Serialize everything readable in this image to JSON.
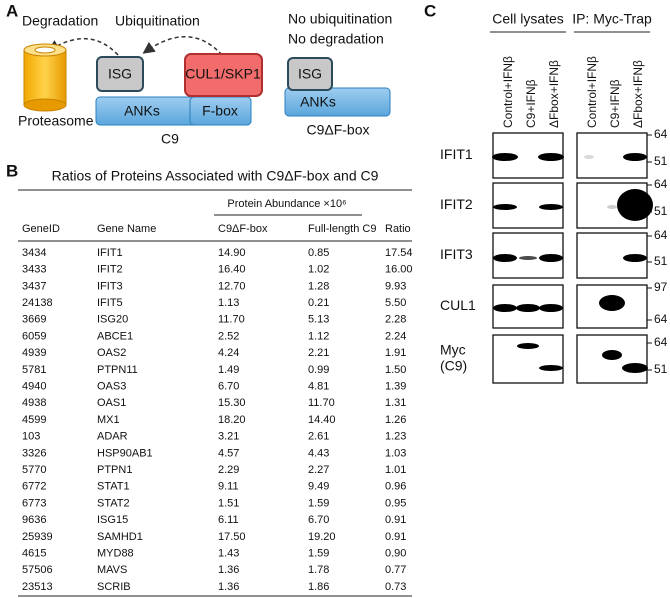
{
  "panel_a": {
    "label": "A",
    "degradation": "Degradation",
    "ubiquitination": "Ubiquitination",
    "no_ubiquitination": "No ubiquitination",
    "no_degradation": "No degradation",
    "proteasome": "Proteasome",
    "isg": "ISG",
    "cul1_skp1": "CUL1/SKP1",
    "anks": "ANKs",
    "fbox": "F-box",
    "c9": "C9",
    "isg_mutant": "ISG",
    "anks_mutant": "ANKs",
    "c9_mutant": "C9ΔF-box"
  },
  "panel_b": {
    "label": "B",
    "title": "Ratios of Proteins Associated with C9ΔF-box and C9",
    "group_header": "Protein Abundance ×10⁶",
    "columns": [
      "GeneID",
      "Gene Name",
      "C9ΔF-box",
      "Full-length C9",
      "Ratio"
    ],
    "rows": [
      [
        "3434",
        "IFIT1",
        "14.90",
        "0.85",
        "17.54"
      ],
      [
        "3433",
        "IFIT2",
        "16.40",
        "1.02",
        "16.00"
      ],
      [
        "3437",
        "IFIT3",
        "12.70",
        "1.28",
        "9.93"
      ],
      [
        "24138",
        "IFIT5",
        "1.13",
        "0.21",
        "5.50"
      ],
      [
        "3669",
        "ISG20",
        "11.70",
        "5.13",
        "2.28"
      ],
      [
        "6059",
        "ABCE1",
        "2.52",
        "1.12",
        "2.24"
      ],
      [
        "4939",
        "OAS2",
        "4.24",
        "2.21",
        "1.91"
      ],
      [
        "5781",
        "PTPN11",
        "1.49",
        "0.99",
        "1.50"
      ],
      [
        "4940",
        "OAS3",
        "6.70",
        "4.81",
        "1.39"
      ],
      [
        "4938",
        "OAS1",
        "15.30",
        "11.70",
        "1.31"
      ],
      [
        "4599",
        "MX1",
        "18.20",
        "14.40",
        "1.26"
      ],
      [
        "103",
        "ADAR",
        "3.21",
        "2.61",
        "1.23"
      ],
      [
        "3326",
        "HSP90AB1",
        "4.57",
        "4.43",
        "1.03"
      ],
      [
        "5770",
        "PTPN1",
        "2.29",
        "2.27",
        "1.01"
      ],
      [
        "6772",
        "STAT1",
        "9.11",
        "9.49",
        "0.96"
      ],
      [
        "6773",
        "STAT2",
        "1.51",
        "1.59",
        "0.95"
      ],
      [
        "9636",
        "ISG15",
        "6.11",
        "6.70",
        "0.91"
      ],
      [
        "25939",
        "SAMHD1",
        "17.50",
        "19.20",
        "0.91"
      ],
      [
        "4615",
        "MYD88",
        "1.43",
        "1.59",
        "0.90"
      ],
      [
        "57506",
        "MAVS",
        "1.36",
        "1.78",
        "0.77"
      ],
      [
        "23513",
        "SCRIB",
        "1.36",
        "1.86",
        "0.73"
      ]
    ]
  },
  "panel_c": {
    "label": "C",
    "groups": [
      "Cell lysates",
      "IP: Myc-Trap"
    ],
    "lanes": [
      [
        "Control+IFNβ",
        "C9+IFNβ",
        "ΔFbox+IFNβ"
      ],
      [
        "Control+IFNβ",
        "C9+IFNβ",
        "ΔFbox+IFNβ"
      ]
    ],
    "blots": [
      {
        "label": [
          "IFIT1"
        ],
        "markers": [
          "64",
          "51"
        ]
      },
      {
        "label": [
          "IFIT2"
        ],
        "markers": [
          "64",
          "51"
        ]
      },
      {
        "label": [
          "IFIT3"
        ],
        "markers": [
          "64",
          "51"
        ]
      },
      {
        "label": [
          "CUL1"
        ],
        "markers": [
          "97",
          "64"
        ]
      },
      {
        "label": [
          "Myc",
          "(C9)"
        ],
        "markers": [
          "64",
          "51"
        ]
      }
    ]
  }
}
